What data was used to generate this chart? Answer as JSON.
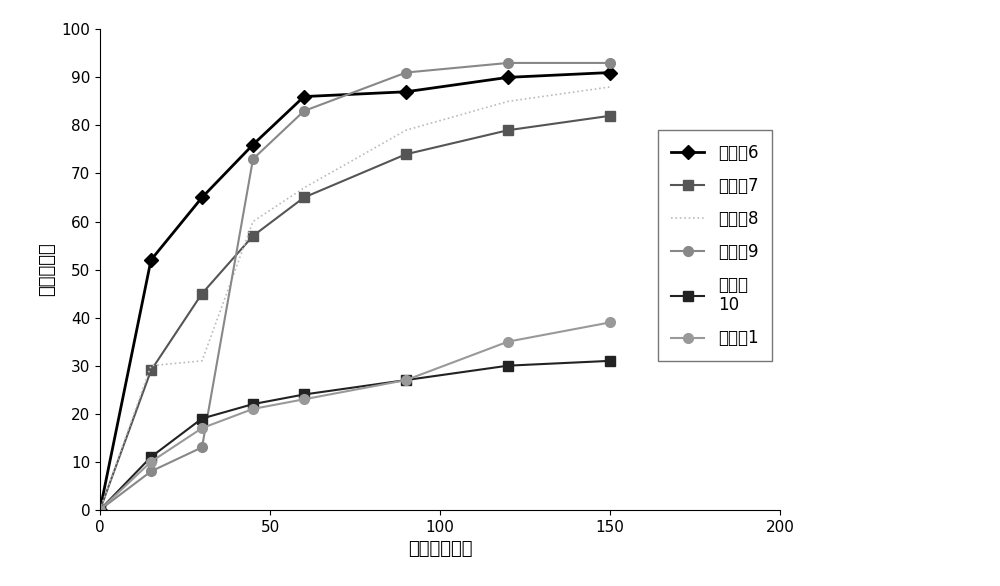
{
  "title": "",
  "xlabel": "时间（分钟）",
  "ylabel": "累计释放度",
  "xlim": [
    0,
    200
  ],
  "ylim": [
    0,
    100
  ],
  "xticks": [
    0,
    50,
    100,
    150,
    200
  ],
  "yticks": [
    0,
    10,
    20,
    30,
    40,
    50,
    60,
    70,
    80,
    90,
    100
  ],
  "series": [
    {
      "label": "实施例6",
      "x": [
        0,
        15,
        30,
        45,
        60,
        90,
        120,
        150
      ],
      "y": [
        0,
        52,
        65,
        76,
        86,
        87,
        90,
        91
      ],
      "color": "#000000",
      "marker": "D",
      "markersize": 7,
      "linewidth": 2.0,
      "linestyle": "-"
    },
    {
      "label": "实施例7",
      "x": [
        0,
        15,
        30,
        45,
        60,
        90,
        120,
        150
      ],
      "y": [
        0,
        29,
        45,
        57,
        65,
        74,
        79,
        82
      ],
      "color": "#555555",
      "marker": "s",
      "markersize": 7,
      "linewidth": 1.5,
      "linestyle": "-"
    },
    {
      "label": "实施例8",
      "x": [
        0,
        15,
        30,
        45,
        60,
        90,
        120,
        150
      ],
      "y": [
        0,
        30,
        31,
        60,
        67,
        79,
        85,
        88
      ],
      "color": "#bbbbbb",
      "marker": null,
      "markersize": 4,
      "linewidth": 1.2,
      "linestyle": ":"
    },
    {
      "label": "实施例9",
      "x": [
        0,
        15,
        30,
        45,
        60,
        90,
        120,
        150
      ],
      "y": [
        0,
        8,
        13,
        73,
        83,
        91,
        93,
        93
      ],
      "color": "#888888",
      "marker": "o",
      "markersize": 7,
      "linewidth": 1.5,
      "linestyle": "-"
    },
    {
      "label": "实施例\n10",
      "x": [
        0,
        15,
        30,
        45,
        60,
        90,
        120,
        150
      ],
      "y": [
        0,
        11,
        19,
        22,
        24,
        27,
        30,
        31
      ],
      "color": "#222222",
      "marker": "s",
      "markersize": 7,
      "linewidth": 1.5,
      "linestyle": "-"
    },
    {
      "label": "实施例1",
      "x": [
        0,
        15,
        30,
        45,
        60,
        90,
        120,
        150
      ],
      "y": [
        0,
        10,
        17,
        21,
        23,
        27,
        35,
        39
      ],
      "color": "#999999",
      "marker": "o",
      "markersize": 7,
      "linewidth": 1.5,
      "linestyle": "-"
    }
  ],
  "background_color": "#ffffff",
  "fig_width": 10.0,
  "fig_height": 5.86
}
